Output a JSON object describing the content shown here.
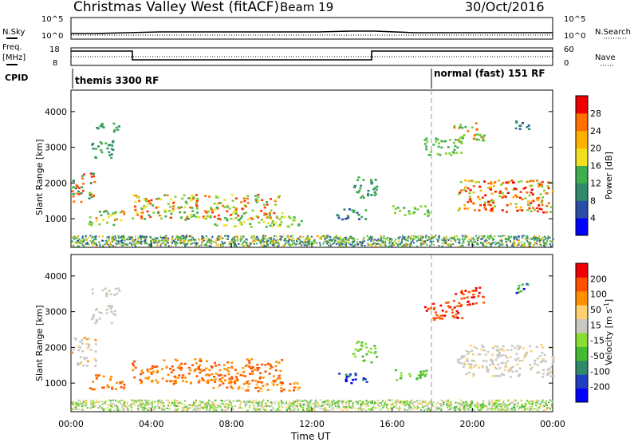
{
  "header": {
    "site": "Christmas Valley West (fitACF)",
    "beam": "Beam 19",
    "date": "30/Oct/2016"
  },
  "noise_panel": {
    "left_label": "N.Sky",
    "right_label": "N.Search",
    "left_ticks": [
      "10^5",
      "10^0"
    ],
    "right_ticks": [
      "10^5",
      "10^0"
    ]
  },
  "freq_panel": {
    "left_label_1": "Freq.",
    "left_label_2": "[MHz]",
    "right_label": "Nave",
    "left_ticks": [
      "18",
      "8"
    ],
    "right_ticks": [
      "60",
      "0"
    ]
  },
  "cpid_panel": {
    "label": "CPID",
    "mode_1": "themis 3300 RF",
    "mode_2": "normal (fast) 151 RF"
  },
  "colors": {
    "scale": [
      "#0000ff",
      "#2a4ea8",
      "#2e8a6a",
      "#3fae4e",
      "#7fcf2f",
      "#f0e020",
      "#ffb000",
      "#ff7000",
      "#ff3000",
      "#ee0000"
    ]
  },
  "chart_data": [
    {
      "type": "heatmap",
      "name": "power",
      "ylabel": "Slant Range [km]",
      "xlabel": "",
      "yticks": [
        "1000",
        "2000",
        "3000",
        "4000"
      ],
      "ylim": [
        200,
        4600
      ],
      "xlim_hours": [
        0,
        24
      ],
      "colorbar_label": "Power [dB]",
      "colorbar_ticks": [
        "4",
        "8",
        "12",
        "16",
        "20",
        "24",
        "28"
      ],
      "colorbar_colors": [
        "#0000ff",
        "#2a4ea8",
        "#2e8a6a",
        "#3fae4e",
        "#f0e020",
        "#ffb000",
        "#ff7000",
        "#ee0000"
      ]
    },
    {
      "type": "heatmap",
      "name": "velocity",
      "ylabel": "Slant Range [km]",
      "xlabel": "Time UT",
      "yticks": [
        "1000",
        "2000",
        "3000",
        "4000"
      ],
      "ylim": [
        200,
        4600
      ],
      "xlim_hours": [
        0,
        24
      ],
      "xticks": [
        "00:00",
        "04:00",
        "08:00",
        "12:00",
        "16:00",
        "20:00",
        "00:00"
      ],
      "colorbar_label": "Velocity [m s",
      "colorbar_label_sup": "-1",
      "colorbar_label_end": "]",
      "colorbar_ticks": [
        "200",
        "100",
        "50",
        "15",
        "-15",
        "-50",
        "-100",
        "-200"
      ],
      "colorbar_colors": [
        "#0000ff",
        "#2040c0",
        "#2e8a6a",
        "#44bb33",
        "#88dd33",
        "#c8c8c0",
        "#ffd070",
        "#ff9000",
        "#ff5000",
        "#ee0000"
      ]
    }
  ]
}
